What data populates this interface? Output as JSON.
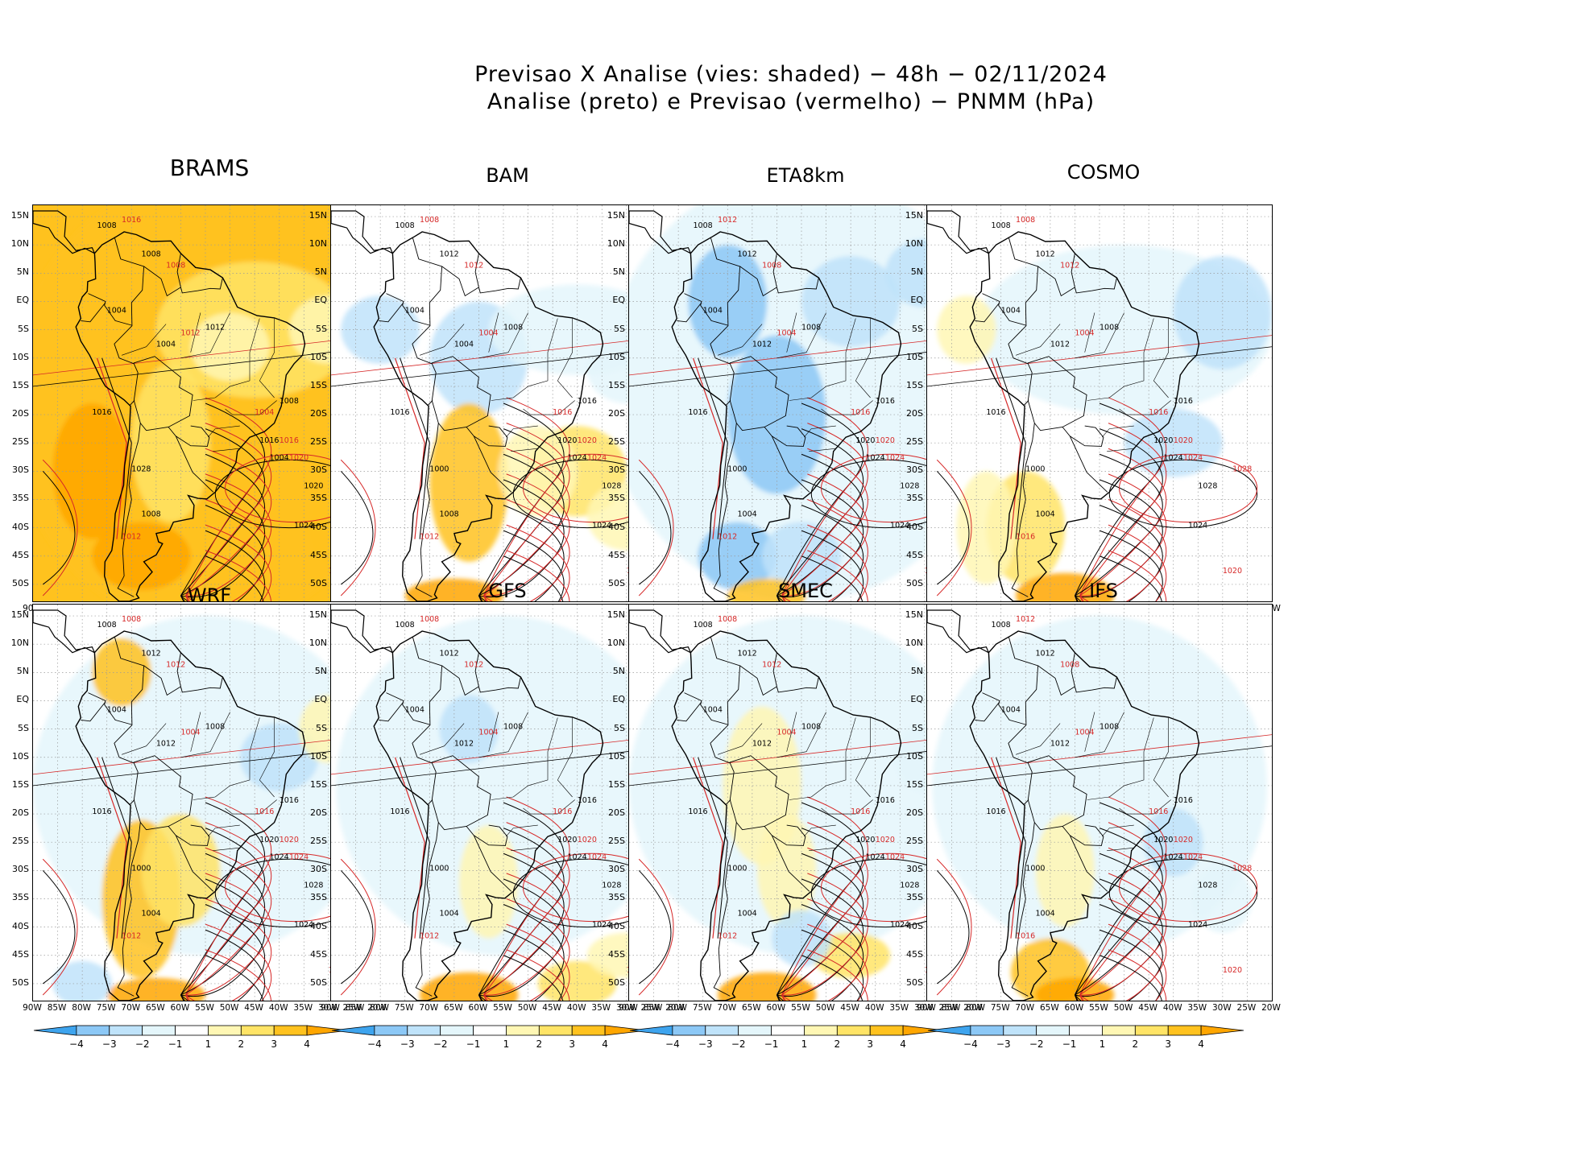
{
  "title": {
    "line1": "Previsao X Analise (vies: shaded) − 48h − 02/11/2024",
    "line2": "Analise (preto) e Previsao (vermelho) − PNMM (hPa)"
  },
  "lat_labels": [
    "15N",
    "10N",
    "5N",
    "EQ",
    "5S",
    "10S",
    "15S",
    "20S",
    "25S",
    "30S",
    "35S",
    "40S",
    "45S",
    "50S"
  ],
  "lon_labels": [
    "90W",
    "85W",
    "80W",
    "75W",
    "70W",
    "65W",
    "60W",
    "55W",
    "50W",
    "45W",
    "40W",
    "35W",
    "30W",
    "25W",
    "20W"
  ],
  "colorbar": {
    "ticks": [
      "−4",
      "−3",
      "−2",
      "−1",
      "1",
      "2",
      "3",
      "4"
    ],
    "colors": [
      "#3ea4ee",
      "#8cc8f6",
      "#bfe3fa",
      "#e4f6fb",
      "#ffffff",
      "#fff7b4",
      "#ffe466",
      "#ffc21e",
      "#ffa600"
    ]
  },
  "panels": [
    {
      "name": "BRAMS",
      "labels_black": [
        "1008",
        "1008",
        "1004",
        "1012",
        "1004",
        "1008",
        "1016",
        "1004",
        "1020",
        "1024",
        "1028",
        "1008",
        "1016"
      ],
      "labels_red": [
        "1016",
        "1008",
        "1012",
        "1004",
        "1016",
        "1020",
        "1024",
        "1028",
        "1012"
      ]
    },
    {
      "name": "BAM",
      "labels_black": [
        "1008",
        "1012",
        "1004",
        "1008",
        "1004",
        "1016",
        "1020",
        "1024",
        "1028",
        "1024",
        "1000",
        "1008",
        "1016"
      ],
      "labels_red": [
        "1008",
        "1012",
        "1004",
        "1016",
        "1020",
        "1024",
        "1028",
        "1004",
        "1012"
      ]
    },
    {
      "name": "ETA8km",
      "labels_black": [
        "1008",
        "1012",
        "1004",
        "1008",
        "1012",
        "1016",
        "1020",
        "1024",
        "1028",
        "1024",
        "1000",
        "1004",
        "1016"
      ],
      "labels_red": [
        "1012",
        "1008",
        "1004",
        "1016",
        "1020",
        "1024",
        "1028",
        "1020",
        "1012"
      ]
    },
    {
      "name": "COSMO",
      "labels_black": [
        "1008",
        "1012",
        "1004",
        "1008",
        "1012",
        "1016",
        "1020",
        "1024",
        "1028",
        "1024",
        "1000",
        "1004",
        "1016"
      ],
      "labels_red": [
        "1008",
        "1012",
        "1004",
        "1016",
        "1020",
        "1024",
        "1028",
        "1020",
        "1016"
      ]
    },
    {
      "name": "WRF",
      "labels_black": [
        "1008",
        "1012",
        "1004",
        "1008",
        "1012",
        "1016",
        "1020",
        "1024",
        "1028",
        "1024",
        "1000",
        "1004",
        "1016"
      ],
      "labels_red": [
        "1008",
        "1012",
        "1004",
        "1016",
        "1020",
        "1024",
        "1028",
        "1020",
        "1012"
      ]
    },
    {
      "name": "GFS",
      "labels_black": [
        "1008",
        "1012",
        "1004",
        "1008",
        "1012",
        "1016",
        "1020",
        "1024",
        "1028",
        "1024",
        "1000",
        "1004",
        "1016"
      ],
      "labels_red": [
        "1008",
        "1012",
        "1004",
        "1016",
        "1020",
        "1024",
        "1028",
        "1020",
        "1012"
      ]
    },
    {
      "name": "SMEC",
      "labels_black": [
        "1008",
        "1012",
        "1004",
        "1008",
        "1012",
        "1016",
        "1020",
        "1024",
        "1028",
        "1024",
        "1000",
        "1004",
        "1016"
      ],
      "labels_red": [
        "1008",
        "1012",
        "1004",
        "1016",
        "1020",
        "1024",
        "1028",
        "1020",
        "1012"
      ]
    },
    {
      "name": "IFS",
      "labels_black": [
        "1008",
        "1012",
        "1004",
        "1008",
        "1012",
        "1016",
        "1020",
        "1024",
        "1028",
        "1024",
        "1000",
        "1004",
        "1016"
      ],
      "labels_red": [
        "1012",
        "1008",
        "1004",
        "1016",
        "1020",
        "1024",
        "1028",
        "1020",
        "1016"
      ]
    }
  ]
}
